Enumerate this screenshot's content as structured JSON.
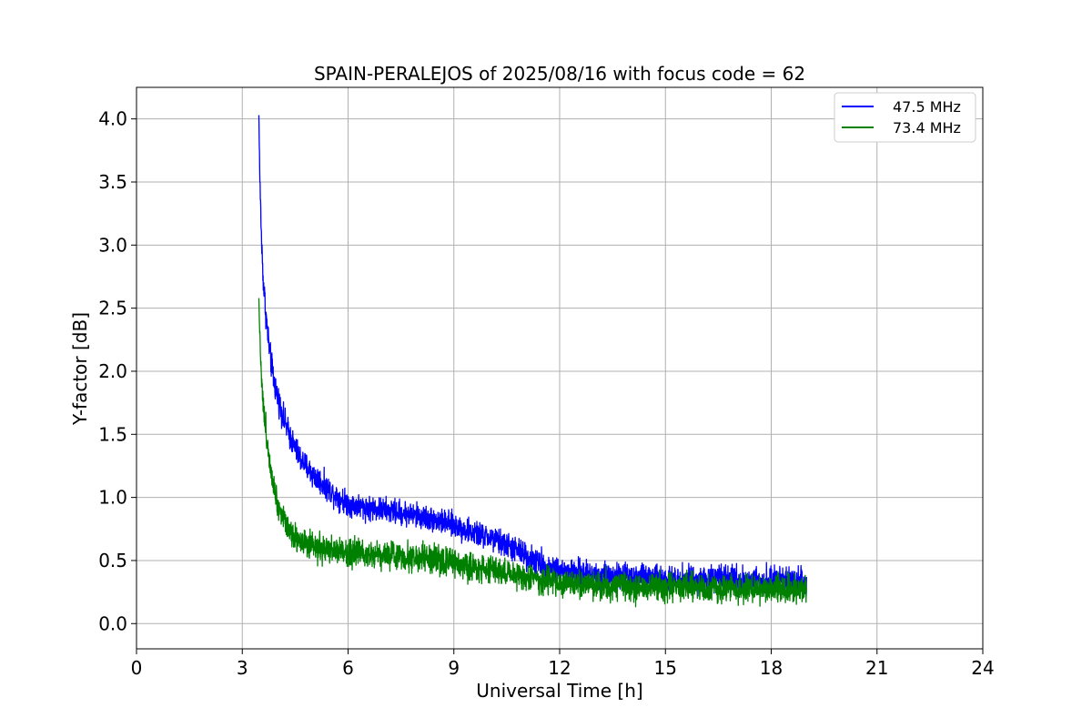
{
  "chart_data": {
    "type": "line",
    "title": "SPAIN-PERALEJOS of 2025/08/16 with focus code = 62",
    "xlabel": "Universal Time [h]",
    "ylabel": "Y-factor [dB]",
    "xlim": [
      0,
      24
    ],
    "ylim": [
      -0.2,
      4.25
    ],
    "xticks": [
      0,
      3,
      6,
      9,
      12,
      15,
      18,
      21,
      24
    ],
    "xtick_labels": [
      "0",
      "3",
      "6",
      "9",
      "12",
      "15",
      "18",
      "21",
      "24"
    ],
    "yticks": [
      0.0,
      0.5,
      1.0,
      1.5,
      2.0,
      2.5,
      3.0,
      3.5,
      4.0
    ],
    "ytick_labels": [
      "0.0",
      "0.5",
      "1.0",
      "1.5",
      "2.0",
      "2.5",
      "3.0",
      "3.5",
      "4.0"
    ],
    "grid": true,
    "legend_position": "top-right",
    "series": [
      {
        "name": "47.5 MHz",
        "color": "#0000ff",
        "x": [
          3.47,
          3.5,
          3.55,
          3.6,
          3.7,
          3.8,
          3.9,
          4.0,
          4.2,
          4.4,
          4.6,
          4.8,
          5.0,
          5.5,
          6.0,
          6.5,
          7.0,
          7.5,
          8.0,
          8.5,
          9.0,
          9.5,
          10.0,
          10.5,
          11.0,
          11.5,
          12.0,
          12.5,
          13.0,
          13.5,
          14.0,
          14.5,
          15.0,
          15.5,
          16.0,
          16.5,
          17.0,
          17.5,
          18.0,
          18.5,
          19.0
        ],
        "y": [
          4.03,
          3.5,
          3.0,
          2.7,
          2.35,
          2.1,
          1.92,
          1.8,
          1.6,
          1.45,
          1.33,
          1.25,
          1.18,
          1.05,
          0.95,
          0.92,
          0.9,
          0.88,
          0.85,
          0.82,
          0.78,
          0.72,
          0.68,
          0.62,
          0.55,
          0.47,
          0.42,
          0.4,
          0.39,
          0.38,
          0.37,
          0.37,
          0.36,
          0.36,
          0.35,
          0.35,
          0.35,
          0.35,
          0.34,
          0.34,
          0.33
        ],
        "noise": [
          0.0,
          0.12,
          0.15,
          0.15,
          0.15,
          0.15,
          0.15,
          0.14,
          0.14,
          0.14,
          0.14,
          0.14,
          0.14,
          0.13,
          0.13,
          0.13,
          0.13,
          0.13,
          0.13,
          0.13,
          0.13,
          0.13,
          0.13,
          0.14,
          0.14,
          0.14,
          0.14,
          0.14,
          0.14,
          0.14,
          0.14,
          0.14,
          0.14,
          0.14,
          0.14,
          0.14,
          0.14,
          0.14,
          0.14,
          0.14,
          0.14
        ]
      },
      {
        "name": "73.4 MHz",
        "color": "#008000",
        "x": [
          3.47,
          3.5,
          3.55,
          3.6,
          3.7,
          3.8,
          3.9,
          4.0,
          4.2,
          4.4,
          4.6,
          4.8,
          5.0,
          5.5,
          6.0,
          6.5,
          7.0,
          7.5,
          8.0,
          8.5,
          9.0,
          9.5,
          10.0,
          10.5,
          11.0,
          11.5,
          12.0,
          12.5,
          13.0,
          13.5,
          14.0,
          14.5,
          15.0,
          15.5,
          16.0,
          16.5,
          17.0,
          17.5,
          18.0,
          18.5,
          19.0
        ],
        "y": [
          2.58,
          2.25,
          1.95,
          1.7,
          1.45,
          1.25,
          1.1,
          0.95,
          0.82,
          0.72,
          0.67,
          0.62,
          0.6,
          0.58,
          0.57,
          0.56,
          0.55,
          0.54,
          0.52,
          0.5,
          0.48,
          0.45,
          0.43,
          0.4,
          0.37,
          0.34,
          0.32,
          0.31,
          0.3,
          0.3,
          0.29,
          0.29,
          0.29,
          0.29,
          0.28,
          0.28,
          0.28,
          0.28,
          0.27,
          0.27,
          0.27
        ],
        "noise": [
          0.0,
          0.1,
          0.14,
          0.15,
          0.15,
          0.15,
          0.15,
          0.15,
          0.15,
          0.15,
          0.15,
          0.15,
          0.15,
          0.15,
          0.15,
          0.15,
          0.15,
          0.15,
          0.15,
          0.15,
          0.15,
          0.15,
          0.15,
          0.15,
          0.15,
          0.15,
          0.15,
          0.15,
          0.15,
          0.15,
          0.15,
          0.15,
          0.15,
          0.15,
          0.15,
          0.15,
          0.15,
          0.15,
          0.15,
          0.15,
          0.15
        ]
      }
    ]
  }
}
